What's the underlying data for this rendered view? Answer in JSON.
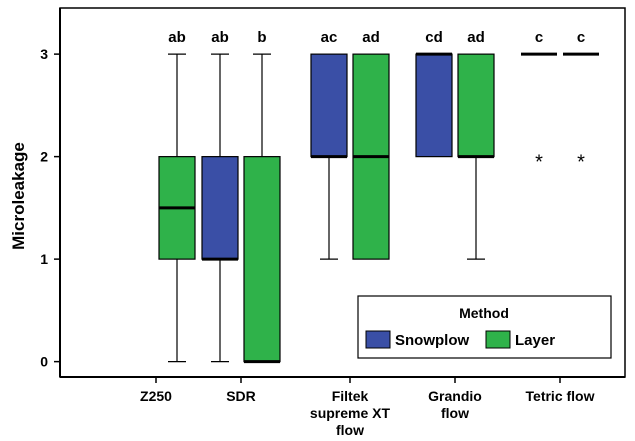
{
  "chart_data": {
    "type": "box",
    "ylabel": "Microleakage",
    "xlabel": "",
    "ylim": [
      -0.15,
      3.45
    ],
    "yticks": [
      0,
      1,
      2,
      3
    ],
    "grid": false,
    "categories": [
      {
        "label_lines": [
          "Z250"
        ]
      },
      {
        "label_lines": [
          "SDR"
        ]
      },
      {
        "label_lines": [
          "Filtek",
          "supreme XT",
          "flow"
        ]
      },
      {
        "label_lines": [
          "Grandio",
          "flow"
        ]
      },
      {
        "label_lines": [
          "Tetric flow"
        ]
      }
    ],
    "legend": {
      "title": "Method",
      "placement": "bottom-right",
      "entries": [
        {
          "name": "Snowplow",
          "color": "#3a4fa6"
        },
        {
          "name": "Layer",
          "color": "#2fb24a"
        }
      ]
    },
    "boxes": [
      {
        "category_index": 0,
        "method": "Layer",
        "whisker_low": 0,
        "q1": 1,
        "median": 1.5,
        "q3": 2,
        "whisker_high": 3,
        "outliers": [],
        "letters": "ab"
      },
      {
        "category_index": 1,
        "method": "Snowplow",
        "whisker_low": 0,
        "q1": 1,
        "median": 1,
        "q3": 2,
        "whisker_high": 3,
        "outliers": [],
        "letters": "ab"
      },
      {
        "category_index": 1,
        "method": "Layer",
        "whisker_low": 0,
        "q1": 0,
        "median": 0,
        "q3": 2,
        "whisker_high": 3,
        "outliers": [],
        "letters": "b"
      },
      {
        "category_index": 2,
        "method": "Snowplow",
        "whisker_low": 1,
        "q1": 2,
        "median": 2,
        "q3": 3,
        "whisker_high": 3,
        "outliers": [],
        "letters": "ac"
      },
      {
        "category_index": 2,
        "method": "Layer",
        "whisker_low": 1,
        "q1": 1,
        "median": 2,
        "q3": 3,
        "whisker_high": 3,
        "outliers": [],
        "letters": "ad"
      },
      {
        "category_index": 3,
        "method": "Snowplow",
        "whisker_low": 2,
        "q1": 2,
        "median": 3,
        "q3": 3,
        "whisker_high": 3,
        "outliers": [],
        "letters": "cd"
      },
      {
        "category_index": 3,
        "method": "Layer",
        "whisker_low": 1,
        "q1": 2,
        "median": 2,
        "q3": 3,
        "whisker_high": 3,
        "outliers": [],
        "letters": "ad"
      },
      {
        "category_index": 4,
        "method": "Snowplow",
        "whisker_low": 3,
        "q1": 3,
        "median": 3,
        "q3": 3,
        "whisker_high": 3,
        "outliers": [
          2
        ],
        "letters": "c"
      },
      {
        "category_index": 4,
        "method": "Layer",
        "whisker_low": 3,
        "q1": 3,
        "median": 3,
        "q3": 3,
        "whisker_high": 3,
        "outliers": [
          2
        ],
        "letters": "c"
      }
    ],
    "outlier_symbol": "*"
  }
}
